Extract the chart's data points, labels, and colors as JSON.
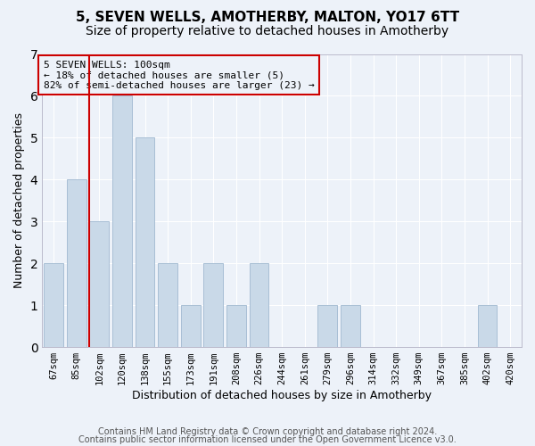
{
  "title": "5, SEVEN WELLS, AMOTHERBY, MALTON, YO17 6TT",
  "subtitle": "Size of property relative to detached houses in Amotherby",
  "xlabel": "Distribution of detached houses by size in Amotherby",
  "ylabel": "Number of detached properties",
  "categories": [
    "67sqm",
    "85sqm",
    "102sqm",
    "120sqm",
    "138sqm",
    "155sqm",
    "173sqm",
    "191sqm",
    "208sqm",
    "226sqm",
    "244sqm",
    "261sqm",
    "279sqm",
    "296sqm",
    "314sqm",
    "332sqm",
    "349sqm",
    "367sqm",
    "385sqm",
    "402sqm",
    "420sqm"
  ],
  "values": [
    2,
    4,
    3,
    6,
    5,
    2,
    1,
    2,
    1,
    2,
    0,
    0,
    1,
    1,
    0,
    0,
    0,
    0,
    0,
    1,
    0
  ],
  "bar_color": "#c9d9e8",
  "bar_edge_color": "#a0b8d0",
  "vline_x": 1.575,
  "vline_color": "#cc0000",
  "annotation_text": "5 SEVEN WELLS: 100sqm\n← 18% of detached houses are smaller (5)\n82% of semi-detached houses are larger (23) →",
  "annotation_box_edgecolor": "#cc0000",
  "ylim_min": 0,
  "ylim_max": 7,
  "yticks": [
    0,
    1,
    2,
    3,
    4,
    5,
    6,
    7
  ],
  "footnote1": "Contains HM Land Registry data © Crown copyright and database right 2024.",
  "footnote2": "Contains public sector information licensed under the Open Government Licence v3.0.",
  "bg_color": "#edf2f9",
  "grid_color": "#ffffff",
  "title_fontsize": 11,
  "subtitle_fontsize": 10,
  "ylabel_fontsize": 9,
  "xlabel_fontsize": 9,
  "tick_fontsize": 7.5,
  "annot_fontsize": 8,
  "footnote_fontsize": 7
}
